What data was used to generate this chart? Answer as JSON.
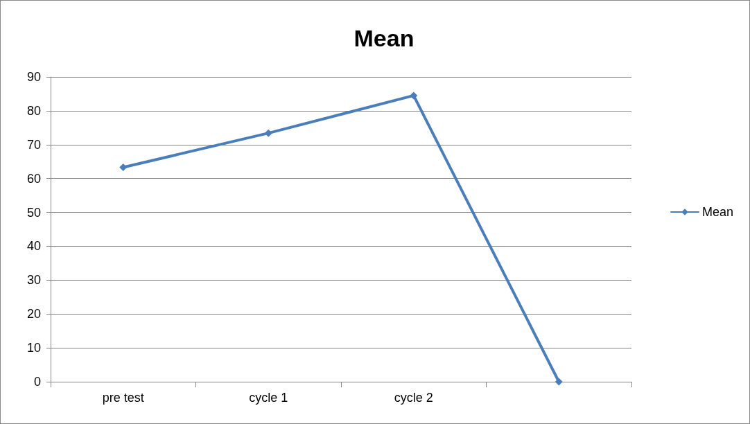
{
  "chart_data": {
    "type": "line",
    "title": "Mean",
    "categories": [
      "pre test",
      "cycle 1",
      "cycle 2",
      null
    ],
    "series": [
      {
        "name": "Mean",
        "color": "#4a7ebb",
        "values": [
          63.3,
          73.4,
          84.5,
          0
        ]
      }
    ],
    "ylim": [
      0,
      90
    ],
    "yticks": [
      0,
      10,
      20,
      30,
      40,
      50,
      60,
      70,
      80,
      90
    ],
    "grid": "y",
    "legend": "right",
    "marker": "diamond",
    "line_style": "solid"
  }
}
